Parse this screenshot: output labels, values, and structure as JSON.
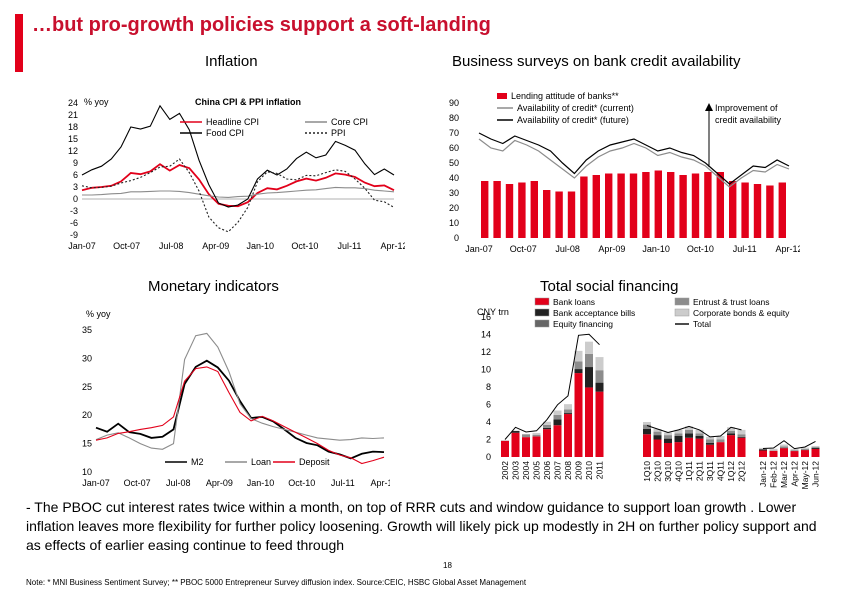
{
  "slide": {
    "title": "…but pro-growth policies support a soft-landing",
    "body": "- The PBOC cut interest rates twice within a month, on top of RRR cuts and window guidance to support loan growth . Lower inflation leaves more flexibility for further policy loosening. Growth will likely pick up modestly in 2H on further policy support and as effects of earlier easing continue to feed through",
    "page_number": "18",
    "footnote": "Note: * MNI Business Sentiment Survey; ** PBOC 5000 Entrepreneur Survey diffusion index. Source:CEIC, HSBC Global Asset Management"
  },
  "sections": {
    "inflation": "Inflation",
    "business": "Business surveys on bank credit availability",
    "monetary": "Monetary indicators",
    "financing": "Total social financing"
  },
  "colors": {
    "accent": "#e2001a",
    "red": "#e2001a",
    "grey": "#8c8c8c",
    "dark": "#222222",
    "black": "#000000"
  },
  "chart_data": [
    {
      "type": "line",
      "title": "China CPI & PPI inflation",
      "ylabel": "% yoy",
      "yticks": [
        "24",
        "21",
        "18",
        "15",
        "12",
        "9",
        "6",
        "3",
        "0",
        "-3",
        "-6",
        "-9"
      ],
      "ylim": [
        -9,
        24
      ],
      "xticks": [
        "Jan-07",
        "Oct-07",
        "Jul-08",
        "Apr-09",
        "Jan-10",
        "Oct-10",
        "Jul-11",
        "Apr-12"
      ],
      "legend": [
        "Headline CPI",
        "Core CPI",
        "Food CPI",
        "PPI"
      ],
      "series": [
        {
          "name": "Headline CPI",
          "color": "#e2001a",
          "values": [
            2.2,
            2.8,
            3.0,
            3.3,
            4.4,
            6.5,
            6.2,
            6.9,
            8.7,
            7.1,
            8.5,
            7.7,
            4.9,
            1.2,
            -1.2,
            -1.7,
            -1.8,
            -0.8,
            1.5,
            2.7,
            2.4,
            3.3,
            4.4,
            5.1,
            4.6,
            5.3,
            6.4,
            6.1,
            5.5,
            4.1,
            3.2,
            3.4,
            2.2
          ]
        },
        {
          "name": "Core CPI",
          "color": "#8c8c8c",
          "values": [
            1.0,
            1.0,
            1.1,
            1.3,
            1.4,
            1.8,
            1.8,
            1.9,
            2.0,
            2.0,
            1.9,
            1.6,
            1.2,
            0.8,
            0.5,
            0.4,
            0.6,
            0.7,
            1.2,
            1.5,
            1.6,
            1.8,
            2.0,
            2.2,
            2.3,
            2.6,
            2.9,
            2.8,
            2.8,
            2.6,
            2.2,
            2.0,
            1.8
          ]
        },
        {
          "name": "Food CPI",
          "color": "#000000",
          "values": [
            6.0,
            7.3,
            8.2,
            10.0,
            13.0,
            18.0,
            17.5,
            18.2,
            23.3,
            19.9,
            21.4,
            17.3,
            9.7,
            3.6,
            -1.0,
            -2.0,
            -1.5,
            0.0,
            5.0,
            7.2,
            6.0,
            7.5,
            10.1,
            11.7,
            10.3,
            11.0,
            14.4,
            13.4,
            12.2,
            8.8,
            6.1,
            7.5,
            6.0
          ]
        },
        {
          "name": "PPI",
          "color": "#222222",
          "values": [
            3.3,
            2.8,
            2.9,
            3.2,
            4.0,
            4.6,
            5.4,
            6.6,
            8.0,
            8.2,
            10.0,
            6.6,
            2.0,
            -4.5,
            -7.2,
            -8.2,
            -5.8,
            -2.1,
            4.3,
            6.8,
            6.4,
            5.0,
            4.8,
            5.9,
            5.8,
            6.6,
            7.3,
            6.9,
            5.0,
            2.7,
            -0.3,
            -0.7,
            -2.1
          ]
        }
      ]
    },
    {
      "type": "bar",
      "yticks": [
        "90",
        "80",
        "70",
        "60",
        "50",
        "40",
        "30",
        "20",
        "10",
        "0"
      ],
      "ylim": [
        0,
        90
      ],
      "xticks": [
        "Jan-07",
        "Oct-07",
        "Jul-08",
        "Apr-09",
        "Jan-10",
        "Oct-10",
        "Jul-11",
        "Apr-12"
      ],
      "legend": [
        "Lending attitude of banks**",
        "Availability of credit* (current)",
        "Availability of credit* (future)"
      ],
      "annotation": "Improvement of credit availability",
      "bars": [
        38,
        38,
        36,
        37,
        38,
        32,
        31,
        31,
        41,
        42,
        43,
        43,
        43,
        44,
        45,
        44,
        42,
        43,
        44,
        44,
        38,
        37,
        36,
        35,
        37
      ],
      "series": [
        {
          "name": "Availability of credit* (current)",
          "color": "#8c8c8c",
          "values": [
            66,
            60,
            58,
            65,
            62,
            58,
            52,
            46,
            40,
            48,
            54,
            58,
            60,
            63,
            60,
            55,
            57,
            54,
            52,
            48,
            41,
            34,
            40,
            45,
            44,
            49,
            46
          ]
        },
        {
          "name": "Availability of credit* (future)",
          "color": "#000000",
          "values": [
            70,
            66,
            63,
            68,
            65,
            62,
            58,
            50,
            43,
            52,
            58,
            62,
            64,
            66,
            62,
            58,
            60,
            57,
            55,
            50,
            43,
            36,
            42,
            48,
            47,
            52,
            48
          ]
        }
      ]
    },
    {
      "type": "line",
      "ylabel": "% yoy",
      "yticks": [
        "35",
        "30",
        "25",
        "20",
        "15",
        "10"
      ],
      "ylim": [
        10,
        35
      ],
      "xticks": [
        "Jan-07",
        "Oct-07",
        "Jul-08",
        "Apr-09",
        "Jan-10",
        "Oct-10",
        "Jul-11",
        "Apr-12"
      ],
      "legend": [
        "M2",
        "Loan",
        "Deposit"
      ],
      "series": [
        {
          "name": "M2",
          "color": "#000000",
          "values": [
            17.8,
            17.1,
            18.5,
            17.0,
            16.7,
            16.0,
            16.2,
            17.5,
            25.5,
            28.5,
            29.6,
            28.4,
            26.1,
            22.5,
            19.5,
            19.7,
            18.9,
            17.5,
            16.0,
            15.1,
            14.7,
            13.6,
            13.1,
            12.4,
            13.2,
            13.6,
            13.5
          ]
        },
        {
          "name": "Loan",
          "color": "#8c8c8c",
          "values": [
            15.7,
            16.5,
            16.9,
            16.0,
            15.0,
            14.2,
            14.0,
            15.0,
            29.8,
            34.0,
            34.4,
            32.0,
            27.7,
            22.0,
            19.4,
            18.6,
            18.0,
            17.5,
            17.0,
            16.5,
            16.0,
            15.8,
            15.6,
            15.7,
            16.0,
            15.9,
            16.0
          ]
        },
        {
          "name": "Deposit",
          "color": "#e2001a",
          "values": [
            15.6,
            16.0,
            16.8,
            17.1,
            17.5,
            17.8,
            18.2,
            19.7,
            26.0,
            28.2,
            28.5,
            27.7,
            24.0,
            20.5,
            19.0,
            19.8,
            19.0,
            18.0,
            17.0,
            16.0,
            15.0,
            13.8,
            13.0,
            12.5,
            11.5,
            12.0,
            12.6
          ]
        }
      ]
    },
    {
      "type": "bar",
      "ylabel": "CNY trn",
      "yticks": [
        "16",
        "14",
        "12",
        "10",
        "8",
        "6",
        "4",
        "2",
        "0"
      ],
      "ylim": [
        0,
        16
      ],
      "legend": [
        "Bank loans",
        "Bank acceptance bills",
        "Equity financing",
        "Entrust & trust loans",
        "Corporate bonds & equity",
        "Total"
      ],
      "categories": [
        "2002",
        "2003",
        "2004",
        "2005",
        "2006",
        "2007",
        "2008",
        "2009",
        "2010",
        "2011",
        "1Q10",
        "2Q10",
        "3Q10",
        "4Q10",
        "1Q11",
        "2Q11",
        "3Q11",
        "4Q11",
        "1Q12",
        "2Q12",
        "Jan-12",
        "Feb-12",
        "Mar-12",
        "Apr-12",
        "May-12",
        "Jun-12"
      ],
      "groups": [
        "annual",
        "quarterly",
        "monthly"
      ],
      "series": [
        {
          "name": "Bank loans",
          "color": "#e2001a",
          "values": [
            1.85,
            2.77,
            2.27,
            2.35,
            3.18,
            3.63,
            4.91,
            9.59,
            7.95,
            7.47,
            2.6,
            2.0,
            1.6,
            1.7,
            2.2,
            2.1,
            1.4,
            1.7,
            2.5,
            2.2,
            0.74,
            0.71,
            1.01,
            0.68,
            0.79,
            0.92
          ]
        },
        {
          "name": "Bank acceptance bills",
          "color": "#222222",
          "values": [
            0.0,
            0.2,
            0.0,
            0.0,
            0.15,
            0.67,
            0.11,
            0.46,
            2.33,
            1.03,
            0.6,
            0.5,
            0.5,
            0.7,
            0.5,
            0.3,
            0.2,
            0.0,
            0.2,
            0.1,
            0.13,
            -0.05,
            0.05,
            0.0,
            0.03,
            0.12
          ]
        },
        {
          "name": "Entrust & trust loans",
          "color": "#8c8c8c",
          "values": [
            0.0,
            0.0,
            0.31,
            0.2,
            0.35,
            0.51,
            0.42,
            0.88,
            1.5,
            1.42,
            0.5,
            0.4,
            0.4,
            0.3,
            0.4,
            0.3,
            0.4,
            0.3,
            0.3,
            0.3,
            0.05,
            0.05,
            0.15,
            0.1,
            0.1,
            0.1
          ]
        },
        {
          "name": "Corporate bonds & equity",
          "color": "#cccccc",
          "values": [
            0.08,
            0.05,
            0.05,
            0.2,
            0.35,
            0.5,
            0.6,
            1.2,
            1.4,
            1.5,
            0.3,
            0.3,
            0.3,
            0.4,
            0.4,
            0.4,
            0.3,
            0.4,
            0.4,
            0.5,
            0.12,
            0.18,
            0.22,
            0.15,
            0.15,
            0.12
          ]
        }
      ],
      "total": [
        2.0,
        3.4,
        2.86,
        3.0,
        4.27,
        5.97,
        6.98,
        13.91,
        14.02,
        12.83,
        3.6,
        3.2,
        2.8,
        3.1,
        3.5,
        3.1,
        2.3,
        2.4,
        3.4,
        3.1,
        0.97,
        1.03,
        1.86,
        0.96,
        1.14,
        1.78
      ]
    }
  ]
}
